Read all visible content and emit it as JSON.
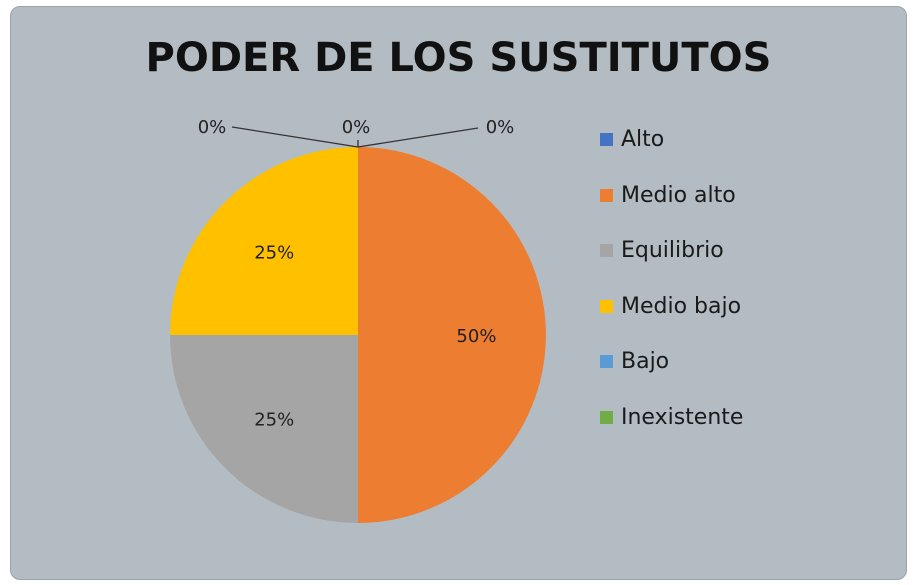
{
  "chart_data": {
    "type": "pie",
    "title": "PODER DE LOS SUSTITUTOS",
    "categories": [
      "Alto",
      "Medio alto",
      "Equilibrio",
      "Medio bajo",
      "Bajo",
      "Inexistente"
    ],
    "values": [
      0,
      50,
      25,
      25,
      0,
      0
    ],
    "data_labels": [
      "0%",
      "50%",
      "25%",
      "25%",
      "0%",
      "0%"
    ],
    "colors": [
      "#4472c4",
      "#ed7d31",
      "#a5a5a5",
      "#ffc000",
      "#5b9bd5",
      "#70ad47"
    ],
    "legend_position": "right"
  }
}
